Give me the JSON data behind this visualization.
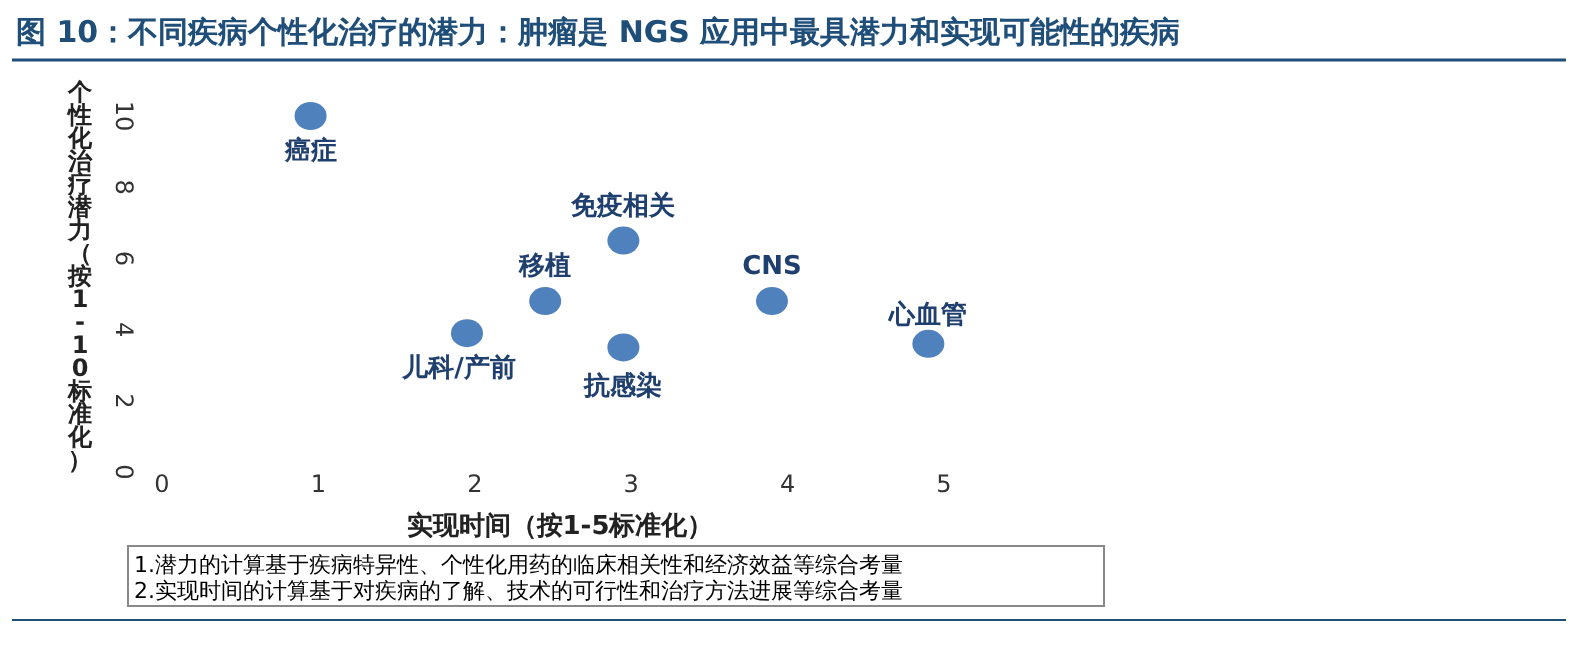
{
  "chart_data": {
    "type": "scatter",
    "title": "图 10：不同疾病个性化治疗的潜力：肿瘤是 NGS 应用中最具潜力和实现可能性的疾病",
    "xlabel": "实现时间（按1-5标准化）",
    "ylabel": "个性化治疗潜力（按1-10标准化）",
    "x": [
      0.95,
      2.95,
      2.45,
      3.9,
      1.95,
      2.95,
      4.9
    ],
    "series": [
      {
        "color": "#4f81bd",
        "values": [
          10,
          6.5,
          4.8,
          4.8,
          3.9,
          3.5,
          3.6
        ]
      }
    ],
    "xlim": [
      0,
      5
    ],
    "xticks": [
      0,
      1,
      2,
      3,
      4,
      5
    ],
    "ylim": [
      0,
      10
    ],
    "yticks": [
      0,
      2,
      4,
      6,
      8,
      10
    ],
    "annotations": [
      {
        "text": "癌症",
        "x": 0.95,
        "y": 10
      },
      {
        "text": "免疫相关",
        "x": 2.95,
        "y": 6.5
      },
      {
        "text": "移植",
        "x": 2.45,
        "y": 4.8
      },
      {
        "text": "CNS",
        "x": 3.9,
        "y": 4.8
      },
      {
        "text": "儿科/产前",
        "x": 1.95,
        "y": 3.9
      },
      {
        "text": "抗感染",
        "x": 2.95,
        "y": 3.5
      },
      {
        "text": "心血管",
        "x": 4.9,
        "y": 3.6
      },
      "1.潜力的计算基于疾病特异性、个性化用药的临床相关性和经济效益等综合考量",
      "2.实现时间的计算基于对疾病的了解、技术的可行性和治疗方法进展等综合考量"
    ]
  }
}
